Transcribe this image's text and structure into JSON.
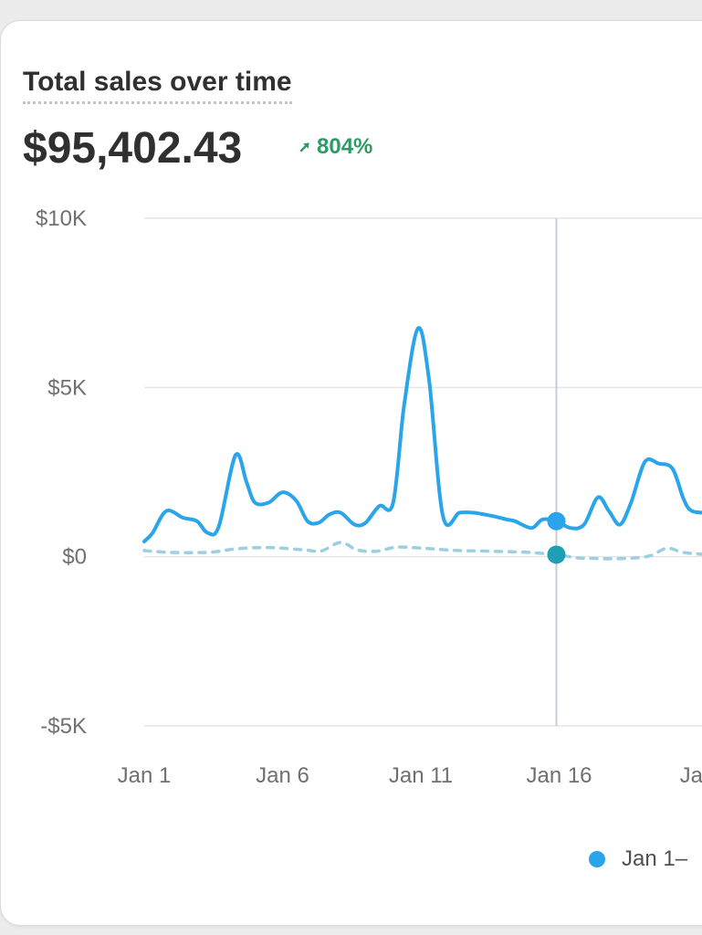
{
  "card": {
    "title": "Total sales over time",
    "total": "$95,402.43",
    "change": "804%",
    "change_icon": "arrow-up-right-icon"
  },
  "colors": {
    "current": "#2aa4ea",
    "previous": "#9ccfe0",
    "positive": "#2e9a64",
    "crosshair_prev_dot": "#1e9fb5"
  },
  "legend": {
    "label": "Jan 1–"
  },
  "chart_data": {
    "type": "line",
    "ylim": [
      -5000,
      10000
    ],
    "yticks": [
      10000,
      5000,
      0,
      -5000
    ],
    "ytick_labels": [
      "$10K",
      "$5K",
      "$0",
      "-$5K"
    ],
    "xticks": [
      1,
      6,
      11,
      16,
      21
    ],
    "xtick_labels": [
      "Jan 1",
      "Jan 6",
      "Jan 11",
      "Jan 16",
      "Jan"
    ],
    "grid": true,
    "legend_position": "bottom-right",
    "crosshair_x": 15.9,
    "series": [
      {
        "values": [
          [
            1,
            450
          ],
          [
            1.3,
            700
          ],
          [
            1.8,
            1350
          ],
          [
            2.4,
            1150
          ],
          [
            2.9,
            1050
          ],
          [
            3.3,
            700
          ],
          [
            3.7,
            900
          ],
          [
            4.3,
            3000
          ],
          [
            4.7,
            2200
          ],
          [
            5.0,
            1600
          ],
          [
            5.5,
            1600
          ],
          [
            6.0,
            1900
          ],
          [
            6.5,
            1650
          ],
          [
            6.9,
            1050
          ],
          [
            7.3,
            1000
          ],
          [
            7.7,
            1250
          ],
          [
            8.1,
            1300
          ],
          [
            8.6,
            950
          ],
          [
            9.0,
            1000
          ],
          [
            9.5,
            1500
          ],
          [
            10.0,
            1600
          ],
          [
            10.4,
            4500
          ],
          [
            10.9,
            6750
          ],
          [
            11.3,
            5200
          ],
          [
            11.8,
            1200
          ],
          [
            12.4,
            1300
          ],
          [
            12.9,
            1300
          ],
          [
            13.6,
            1200
          ],
          [
            14.1,
            1100
          ],
          [
            14.4,
            1050
          ],
          [
            15.0,
            850
          ],
          [
            15.4,
            1100
          ],
          [
            15.9,
            1050
          ],
          [
            16.4,
            850
          ],
          [
            16.9,
            950
          ],
          [
            17.4,
            1750
          ],
          [
            17.8,
            1350
          ],
          [
            18.2,
            950
          ],
          [
            18.6,
            1600
          ],
          [
            19.1,
            2800
          ],
          [
            19.6,
            2750
          ],
          [
            20.1,
            2600
          ],
          [
            20.5,
            1700
          ],
          [
            20.8,
            1350
          ],
          [
            21.4,
            1300
          ]
        ]
      },
      {
        "values": [
          [
            1,
            180
          ],
          [
            1.8,
            130
          ],
          [
            2.7,
            120
          ],
          [
            3.5,
            140
          ],
          [
            4.3,
            230
          ],
          [
            5.2,
            270
          ],
          [
            6.0,
            250
          ],
          [
            6.8,
            200
          ],
          [
            7.4,
            170
          ],
          [
            8.1,
            420
          ],
          [
            8.7,
            200
          ],
          [
            9.4,
            160
          ],
          [
            10.1,
            280
          ],
          [
            10.9,
            260
          ],
          [
            11.6,
            220
          ],
          [
            12.4,
            180
          ],
          [
            13.2,
            170
          ],
          [
            14.0,
            150
          ],
          [
            14.8,
            130
          ],
          [
            15.9,
            60
          ],
          [
            16.6,
            -30
          ],
          [
            17.2,
            -50
          ],
          [
            17.9,
            -60
          ],
          [
            18.7,
            -40
          ],
          [
            19.3,
            30
          ],
          [
            19.9,
            250
          ],
          [
            20.5,
            120
          ],
          [
            21.4,
            60
          ]
        ]
      }
    ]
  }
}
